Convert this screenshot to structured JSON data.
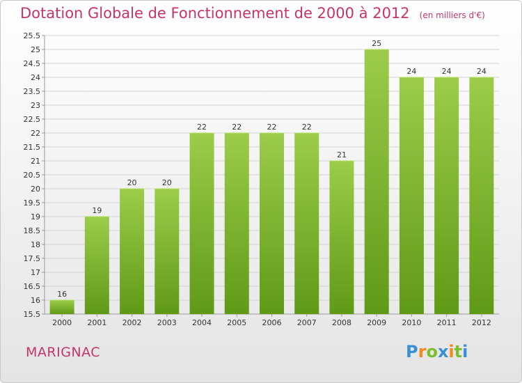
{
  "title": "Dotation Globale de Fonctionnement de 2000 à 2012",
  "unit_note": "(en milliers d'€)",
  "place": "MARIGNAC",
  "logo": {
    "text": "Proxiti",
    "letters": [
      {
        "ch": "P",
        "color": "#3a8fd6"
      },
      {
        "ch": "r",
        "color": "#f08a1c"
      },
      {
        "ch": "o",
        "color": "#7bbf2a"
      },
      {
        "ch": "x",
        "color": "#3a8fd6"
      },
      {
        "ch": "i",
        "color": "#f08a1c"
      },
      {
        "ch": "t",
        "color": "#7bbf2a"
      },
      {
        "ch": "i",
        "color": "#3a8fd6"
      }
    ]
  },
  "colors": {
    "accent": "#c4346c",
    "bar_top": "#9ccc4a",
    "bar_bottom": "#5f9a16"
  },
  "chart_data": {
    "type": "bar",
    "title": "Dotation Globale de Fonctionnement de 2000 à 2012",
    "subtitle": "(en milliers d'€)",
    "categories": [
      "2000",
      "2001",
      "2002",
      "2003",
      "2004",
      "2005",
      "2006",
      "2007",
      "2008",
      "2009",
      "2010",
      "2011",
      "2012"
    ],
    "values": [
      16,
      19,
      20,
      20,
      22,
      22,
      22,
      22,
      21,
      25,
      24,
      24,
      24
    ],
    "value_labels": [
      "16",
      "19",
      "20",
      "20",
      "22",
      "22",
      "22",
      "22",
      "21",
      "25",
      "24",
      "24",
      "24"
    ],
    "ylim": [
      15.5,
      25.5
    ],
    "yticks": [
      "15.5",
      "16",
      "16.5",
      "17",
      "17.5",
      "18",
      "18.5",
      "19",
      "19.5",
      "20",
      "20.5",
      "21",
      "21.5",
      "22",
      "22.5",
      "23",
      "23.5",
      "24",
      "24.5",
      "25",
      "25.5"
    ],
    "grid": true,
    "legend": "none"
  }
}
